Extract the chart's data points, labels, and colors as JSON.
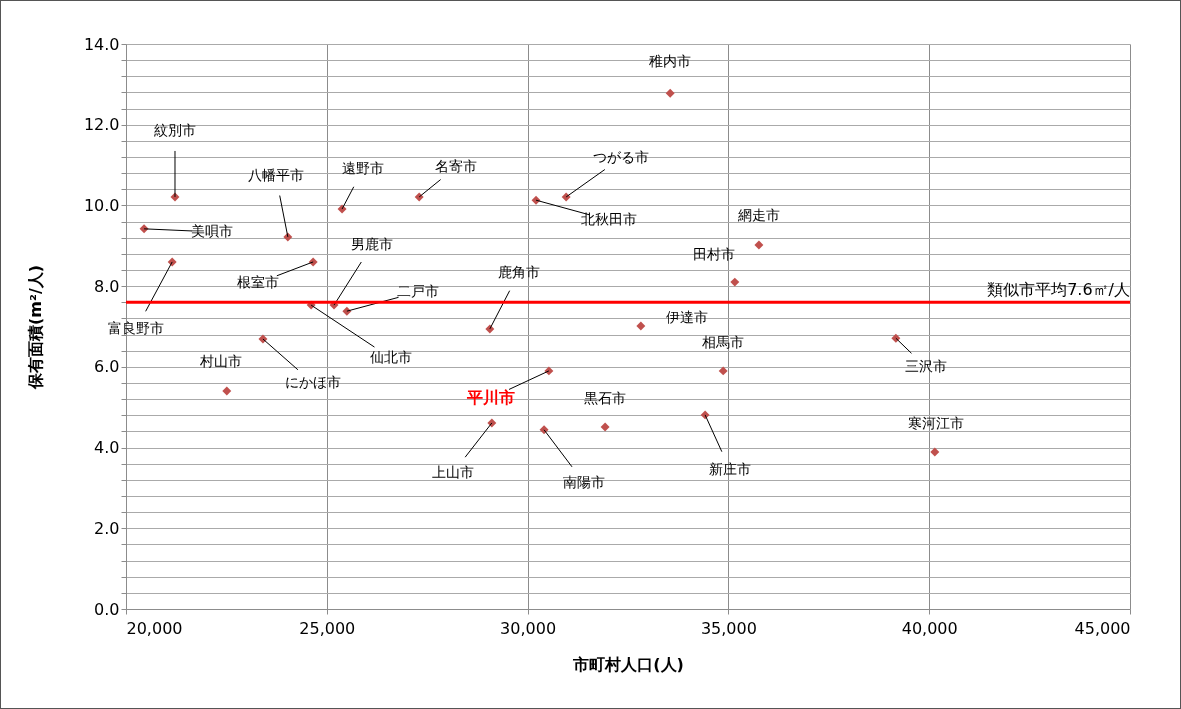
{
  "chart_data": {
    "type": "scatter",
    "xlabel": "市町村人口(人)",
    "ylabel": "保有面積(m²/人)",
    "xlim": [
      20000,
      45000
    ],
    "xticks": [
      {
        "value": 20000,
        "label": "20,000"
      },
      {
        "value": 25000,
        "label": "25,000"
      },
      {
        "value": 30000,
        "label": "30,000"
      },
      {
        "value": 35000,
        "label": "35,000"
      },
      {
        "value": 40000,
        "label": "40,000"
      },
      {
        "value": 45000,
        "label": "45,000"
      }
    ],
    "ylim": [
      0,
      14
    ],
    "yticks": [
      {
        "value": 0,
        "label": "0.0"
      },
      {
        "value": 0.4,
        "label": null
      },
      {
        "value": 0.8,
        "label": null
      },
      {
        "value": 1.2,
        "label": null
      },
      {
        "value": 1.6,
        "label": null
      },
      {
        "value": 2,
        "label": "2.0"
      },
      {
        "value": 2.4,
        "label": null
      },
      {
        "value": 2.8,
        "label": null
      },
      {
        "value": 3.2,
        "label": null
      },
      {
        "value": 3.6,
        "label": null
      },
      {
        "value": 4,
        "label": "4.0"
      },
      {
        "value": 4.4,
        "label": null
      },
      {
        "value": 4.8,
        "label": null
      },
      {
        "value": 5.2,
        "label": null
      },
      {
        "value": 5.6,
        "label": null
      },
      {
        "value": 6,
        "label": "6.0"
      },
      {
        "value": 6.4,
        "label": null
      },
      {
        "value": 6.8,
        "label": null
      },
      {
        "value": 7.2,
        "label": null
      },
      {
        "value": 7.6,
        "label": null
      },
      {
        "value": 8,
        "label": "8.0"
      },
      {
        "value": 8.4,
        "label": null
      },
      {
        "value": 8.8,
        "label": null
      },
      {
        "value": 9.2,
        "label": null
      },
      {
        "value": 9.6,
        "label": null
      },
      {
        "value": 10,
        "label": "10.0"
      },
      {
        "value": 10.4,
        "label": null
      },
      {
        "value": 10.8,
        "label": null
      },
      {
        "value": 11.2,
        "label": null
      },
      {
        "value": 11.6,
        "label": null
      },
      {
        "value": 12,
        "label": "12.0"
      },
      {
        "value": 12.4,
        "label": null
      },
      {
        "value": 12.8,
        "label": null
      },
      {
        "value": 13.2,
        "label": null
      },
      {
        "value": 13.6,
        "label": null
      },
      {
        "value": 14,
        "label": "14.0"
      }
    ],
    "grid": true,
    "marker": "diamond",
    "legend": false,
    "series": [
      {
        "color": "#c0504d",
        "x": [
          33550,
          21220,
          20450,
          21150,
          24030,
          24660,
          25380,
          27300,
          25180,
          25500,
          24610,
          23410,
          22510,
          29060,
          30210,
          30960,
          35760,
          35160,
          32820,
          34870,
          39170,
          31930,
          34420,
          40140,
          29110,
          30410
        ],
        "values": [
          12.78,
          10.21,
          9.42,
          8.6,
          9.22,
          8.6,
          9.91,
          10.21,
          7.53,
          7.38,
          7.53,
          6.69,
          5.4,
          6.94,
          10.13,
          10.21,
          9.02,
          8.1,
          7.01,
          5.9,
          6.71,
          4.51,
          4.81,
          3.89,
          4.61,
          4.44
        ]
      },
      {
        "name": "平川市",
        "color": "#c0504d",
        "x": [
          30530
        ],
        "values": [
          5.9
        ]
      }
    ],
    "ref_lines": [
      {
        "axis": "y",
        "value": 7.6,
        "label": "類似市平均7.6㎡/人",
        "color": "#ff0000"
      }
    ],
    "annotations": [
      {
        "text": "稚内市",
        "x": 33550,
        "y": 12.78
      },
      {
        "text": "紋別市",
        "x": 21220,
        "y": 10.21
      },
      {
        "text": "美唄市",
        "x": 20450,
        "y": 9.42
      },
      {
        "text": "富良野市",
        "x": 21150,
        "y": 8.6
      },
      {
        "text": "八幡平市",
        "x": 24030,
        "y": 9.22
      },
      {
        "text": "根室市",
        "x": 24660,
        "y": 8.6
      },
      {
        "text": "遠野市",
        "x": 25380,
        "y": 9.91
      },
      {
        "text": "名寄市",
        "x": 27300,
        "y": 10.21
      },
      {
        "text": "男鹿市",
        "x": 25180,
        "y": 7.53
      },
      {
        "text": "二戸市",
        "x": 25500,
        "y": 7.38
      },
      {
        "text": "仙北市",
        "x": 24610,
        "y": 7.53
      },
      {
        "text": "にかほ市",
        "x": 23410,
        "y": 6.69
      },
      {
        "text": "村山市",
        "x": 22510,
        "y": 5.4
      },
      {
        "text": "鹿角市",
        "x": 29060,
        "y": 6.94
      },
      {
        "text": "北秋田市",
        "x": 30210,
        "y": 10.13
      },
      {
        "text": "つがる市",
        "x": 30960,
        "y": 10.21
      },
      {
        "text": "網走市",
        "x": 35760,
        "y": 9.02
      },
      {
        "text": "田村市",
        "x": 35160,
        "y": 8.1
      },
      {
        "text": "伊達市",
        "x": 32820,
        "y": 7.01
      },
      {
        "text": "相馬市",
        "x": 34870,
        "y": 5.9
      },
      {
        "text": "三沢市",
        "x": 39170,
        "y": 6.71
      },
      {
        "text": "黒石市",
        "x": 31930,
        "y": 4.51
      },
      {
        "text": "新庄市",
        "x": 34420,
        "y": 4.81
      },
      {
        "text": "寒河江市",
        "x": 40140,
        "y": 3.89
      },
      {
        "text": "上山市",
        "x": 29110,
        "y": 4.61
      },
      {
        "text": "南陽市",
        "x": 30410,
        "y": 4.44
      }
    ]
  }
}
